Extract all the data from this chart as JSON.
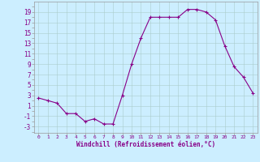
{
  "x": [
    0,
    1,
    2,
    3,
    4,
    5,
    6,
    7,
    8,
    9,
    10,
    11,
    12,
    13,
    14,
    15,
    16,
    17,
    18,
    19,
    20,
    21,
    22,
    23
  ],
  "y": [
    2.5,
    2.0,
    1.5,
    -0.5,
    -0.5,
    -2.0,
    -1.5,
    -2.5,
    -2.5,
    3.0,
    9.0,
    14.0,
    18.0,
    18.0,
    18.0,
    18.0,
    19.5,
    19.5,
    19.0,
    17.5,
    12.5,
    8.5,
    6.5,
    3.5
  ],
  "line_color": "#880088",
  "marker": "+",
  "bg_color": "#cceeff",
  "grid_color": "#aacccc",
  "xlabel": "Windchill (Refroidissement éolien,°C)",
  "ylabel_ticks": [
    -3,
    -1,
    1,
    3,
    5,
    7,
    9,
    11,
    13,
    15,
    17,
    19
  ],
  "xlim": [
    -0.5,
    23.5
  ],
  "ylim": [
    -4.2,
    21.0
  ],
  "xtick_labels": [
    "0",
    "1",
    "2",
    "3",
    "4",
    "5",
    "6",
    "7",
    "8",
    "9",
    "10",
    "11",
    "12",
    "13",
    "14",
    "15",
    "16",
    "17",
    "18",
    "19",
    "20",
    "21",
    "22",
    "23"
  ]
}
